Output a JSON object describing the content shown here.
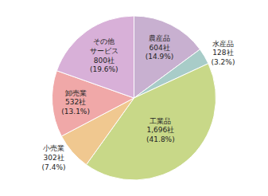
{
  "chart_data": {
    "type": "pie",
    "values": [
      14.9,
      3.2,
      41.8,
      7.4,
      13.1,
      19.6
    ],
    "value_labels": [
      "農産品\n604社\n(14.9%)",
      "水産品\n128社\n(3.2%)",
      "工業品\n1,696社\n(41.8%)",
      "小売業\n302社\n(7.4%)",
      "卸売業\n532社\n(13.1%)",
      "その他\nサービス\n800社\n(19.6%)"
    ],
    "colors": [
      "#c8b0d0",
      "#a8ccc8",
      "#c8d888",
      "#f0c890",
      "#f0a8a8",
      "#d8b0d8"
    ],
    "data_labels": true
  }
}
